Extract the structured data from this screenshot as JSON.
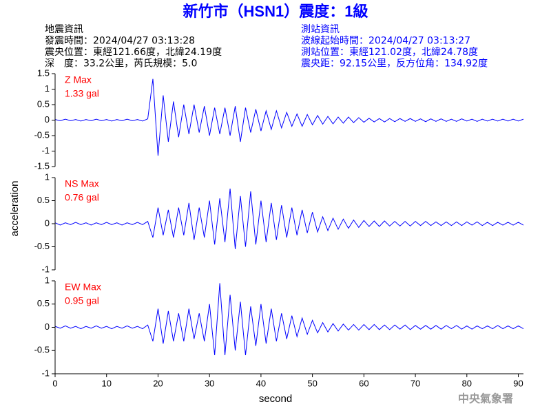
{
  "header": {
    "title": "新竹市（HSN1）震度：1級",
    "left": [
      "地震資訊",
      "發震時間：2024/04/27 03:13:28",
      "震央位置：東經121.66度，北緯24.19度",
      "深　度：33.2公里，芮氏規模：5.0"
    ],
    "right": [
      "測站資訊",
      "波線起始時間：2024/04/27 03:13:27",
      "測站位置：東經121.02度，北緯24.78度",
      "震央距：92.15公里，反方位角：134.92度"
    ]
  },
  "axes": {
    "xlabel": "second",
    "ylabel": "acceleration"
  },
  "footer": "中央氣象署",
  "chart_data": [
    {
      "type": "line",
      "annotation": [
        "Z Max",
        "1.33 gal"
      ],
      "annotation_color": "#ff0000",
      "x": [
        0,
        1,
        2,
        3,
        4,
        5,
        6,
        7,
        8,
        9,
        10,
        11,
        12,
        13,
        14,
        15,
        16,
        17,
        18,
        19,
        20,
        21,
        22,
        23,
        24,
        25,
        26,
        27,
        28,
        29,
        30,
        31,
        32,
        33,
        34,
        35,
        36,
        37,
        38,
        39,
        40,
        41,
        42,
        43,
        44,
        45,
        46,
        47,
        48,
        49,
        50,
        51,
        52,
        53,
        54,
        55,
        56,
        57,
        58,
        59,
        60,
        61,
        62,
        63,
        64,
        65,
        66,
        67,
        68,
        69,
        70,
        71,
        72,
        73,
        74,
        75,
        76,
        77,
        78,
        79,
        80,
        81,
        82,
        83,
        84,
        85,
        86,
        87,
        88,
        89,
        90,
        91
      ],
      "series": [
        {
          "color": "#0000ff",
          "values": [
            0.02,
            -0.02,
            0.03,
            -0.02,
            0.02,
            -0.03,
            0.02,
            -0.02,
            0.03,
            -0.02,
            0.02,
            -0.03,
            0.02,
            -0.02,
            0.03,
            -0.02,
            0.02,
            -0.03,
            0.04,
            1.33,
            -1.15,
            0.8,
            -0.7,
            0.6,
            -0.55,
            0.5,
            -0.45,
            0.5,
            -0.4,
            0.45,
            -0.5,
            0.4,
            -0.45,
            0.4,
            -0.5,
            0.45,
            -0.7,
            0.4,
            -0.4,
            0.35,
            -0.35,
            0.3,
            -0.3,
            0.3,
            -0.25,
            0.25,
            -0.2,
            0.2,
            -0.2,
            0.18,
            -0.15,
            0.15,
            -0.13,
            0.12,
            -0.12,
            0.1,
            -0.1,
            0.1,
            -0.08,
            0.08,
            -0.07,
            0.06,
            -0.06,
            0.05,
            -0.06,
            0.05,
            -0.05,
            0.05,
            -0.04,
            0.05,
            -0.04,
            0.04,
            -0.05,
            0.04,
            -0.04,
            0.04,
            -0.04,
            0.03,
            -0.04,
            0.04,
            -0.03,
            0.03,
            -0.04,
            0.03,
            -0.03,
            0.03,
            -0.03,
            0.03,
            -0.03,
            0.03,
            -0.03,
            0.03
          ]
        }
      ],
      "xlim": [
        0,
        91
      ],
      "ylim": [
        -1.5,
        1.5
      ],
      "yticks": [
        -1.5,
        -1,
        -0.5,
        0,
        0.5,
        1,
        1.5
      ]
    },
    {
      "type": "line",
      "annotation": [
        "NS Max",
        "0.76 gal"
      ],
      "annotation_color": "#ff0000",
      "x": [
        0,
        1,
        2,
        3,
        4,
        5,
        6,
        7,
        8,
        9,
        10,
        11,
        12,
        13,
        14,
        15,
        16,
        17,
        18,
        19,
        20,
        21,
        22,
        23,
        24,
        25,
        26,
        27,
        28,
        29,
        30,
        31,
        32,
        33,
        34,
        35,
        36,
        37,
        38,
        39,
        40,
        41,
        42,
        43,
        44,
        45,
        46,
        47,
        48,
        49,
        50,
        51,
        52,
        53,
        54,
        55,
        56,
        57,
        58,
        59,
        60,
        61,
        62,
        63,
        64,
        65,
        66,
        67,
        68,
        69,
        70,
        71,
        72,
        73,
        74,
        75,
        76,
        77,
        78,
        79,
        80,
        81,
        82,
        83,
        84,
        85,
        86,
        87,
        88,
        89,
        90,
        91
      ],
      "series": [
        {
          "color": "#0000ff",
          "values": [
            0.02,
            -0.03,
            0.02,
            -0.02,
            0.03,
            -0.02,
            0.02,
            -0.03,
            0.02,
            -0.02,
            0.03,
            -0.02,
            0.02,
            -0.03,
            0.02,
            -0.02,
            0.03,
            -0.02,
            0.05,
            -0.3,
            0.35,
            -0.25,
            0.3,
            -0.3,
            0.35,
            -0.25,
            0.45,
            -0.35,
            0.35,
            -0.3,
            0.5,
            -0.45,
            0.55,
            -0.4,
            0.76,
            -0.55,
            0.6,
            -0.5,
            0.7,
            -0.45,
            0.5,
            -0.4,
            0.45,
            -0.35,
            0.4,
            -0.3,
            0.35,
            -0.25,
            0.3,
            -0.2,
            0.25,
            -0.18,
            0.15,
            -0.15,
            0.12,
            -0.12,
            0.1,
            -0.1,
            0.08,
            -0.08,
            0.07,
            -0.06,
            0.06,
            -0.06,
            0.06,
            -0.05,
            0.05,
            -0.05,
            0.05,
            -0.05,
            0.05,
            -0.04,
            0.05,
            -0.04,
            0.04,
            -0.04,
            0.04,
            -0.04,
            0.04,
            -0.04,
            0.04,
            -0.03,
            0.04,
            -0.04,
            0.03,
            -0.04,
            0.03,
            -0.03,
            0.03,
            -0.03,
            0.03,
            -0.03
          ]
        }
      ],
      "xlim": [
        0,
        91
      ],
      "ylim": [
        -1,
        1
      ],
      "yticks": [
        -1,
        -0.5,
        0,
        0.5,
        1
      ]
    },
    {
      "type": "line",
      "annotation": [
        "EW Max",
        "0.95 gal"
      ],
      "annotation_color": "#ff0000",
      "x": [
        0,
        1,
        2,
        3,
        4,
        5,
        6,
        7,
        8,
        9,
        10,
        11,
        12,
        13,
        14,
        15,
        16,
        17,
        18,
        19,
        20,
        21,
        22,
        23,
        24,
        25,
        26,
        27,
        28,
        29,
        30,
        31,
        32,
        33,
        34,
        35,
        36,
        37,
        38,
        39,
        40,
        41,
        42,
        43,
        44,
        45,
        46,
        47,
        48,
        49,
        50,
        51,
        52,
        53,
        54,
        55,
        56,
        57,
        58,
        59,
        60,
        61,
        62,
        63,
        64,
        65,
        66,
        67,
        68,
        69,
        70,
        71,
        72,
        73,
        74,
        75,
        76,
        77,
        78,
        79,
        80,
        81,
        82,
        83,
        84,
        85,
        86,
        87,
        88,
        89,
        90,
        91
      ],
      "series": [
        {
          "color": "#0000ff",
          "values": [
            0.02,
            -0.02,
            0.03,
            -0.02,
            0.02,
            -0.03,
            0.02,
            -0.02,
            0.03,
            -0.02,
            0.02,
            -0.03,
            0.02,
            -0.02,
            0.03,
            -0.02,
            0.02,
            -0.03,
            0.05,
            -0.3,
            0.4,
            -0.35,
            0.35,
            -0.3,
            0.3,
            -0.3,
            0.4,
            -0.25,
            0.3,
            -0.3,
            0.5,
            -0.6,
            0.95,
            -0.6,
            0.7,
            -0.5,
            0.55,
            -0.6,
            0.45,
            -0.4,
            0.5,
            -0.35,
            0.4,
            -0.3,
            0.3,
            -0.25,
            0.25,
            -0.2,
            0.2,
            -0.15,
            0.15,
            -0.12,
            0.1,
            -0.1,
            0.08,
            -0.08,
            0.07,
            -0.06,
            0.06,
            -0.06,
            0.06,
            -0.05,
            0.06,
            -0.05,
            0.05,
            -0.05,
            0.05,
            -0.04,
            0.05,
            -0.05,
            0.04,
            -0.04,
            0.04,
            -0.04,
            0.04,
            -0.04,
            0.04,
            -0.03,
            0.04,
            -0.04,
            0.03,
            -0.04,
            0.03,
            -0.03,
            0.03,
            -0.03,
            0.04,
            -0.03,
            0.03,
            -0.03,
            0.03,
            -0.03
          ]
        }
      ],
      "xlim": [
        0,
        91
      ],
      "ylim": [
        -1,
        1
      ],
      "yticks": [
        -1,
        -0.5,
        0,
        0.5,
        1
      ],
      "xticks": [
        0,
        10,
        20,
        30,
        40,
        50,
        60,
        70,
        80,
        90
      ]
    }
  ]
}
